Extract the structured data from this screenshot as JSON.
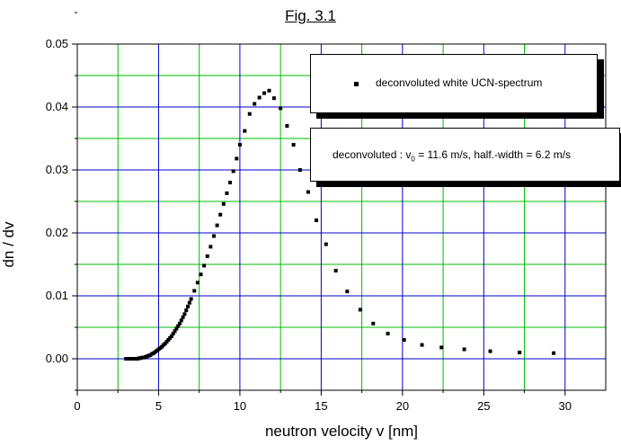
{
  "figure_title": "Fig. 3.1",
  "legend": {
    "series_label": "deconvoluted white UCN-spectrum"
  },
  "annotation": {
    "prefix": "deconvoluted : v",
    "subscript": "0",
    "suffix": " = 11.6 m/s, half.-width = 6.2 m/s"
  },
  "chart_data": {
    "type": "scatter",
    "xlabel": "neutron velocity v [nm]",
    "ylabel": "dn / dv",
    "xlim": [
      0,
      32.5
    ],
    "ylim": [
      -0.005,
      0.05
    ],
    "xticks": [
      "0",
      "5",
      "10",
      "15",
      "20",
      "25",
      "30"
    ],
    "yticks": [
      "0.00",
      "0.01",
      "0.02",
      "0.03",
      "0.04",
      "0.05"
    ],
    "grid": true,
    "grid_major_color": "#0000cc",
    "grid_minor_color": "#00bb00",
    "marker_color": "#000000",
    "series": [
      {
        "name": "deconvoluted white UCN-spectrum",
        "x": [
          3.0,
          3.1,
          3.2,
          3.3,
          3.4,
          3.5,
          3.6,
          3.7,
          3.8,
          3.9,
          4.0,
          4.1,
          4.2,
          4.3,
          4.4,
          4.5,
          4.6,
          4.7,
          4.8,
          4.9,
          5.0,
          5.1,
          5.2,
          5.3,
          5.4,
          5.5,
          5.6,
          5.7,
          5.8,
          5.9,
          6.0,
          6.1,
          6.2,
          6.3,
          6.4,
          6.5,
          6.6,
          6.7,
          6.8,
          6.9,
          7.0,
          7.2,
          7.4,
          7.6,
          7.8,
          8.0,
          8.2,
          8.4,
          8.6,
          8.8,
          9.0,
          9.2,
          9.4,
          9.6,
          9.8,
          10.0,
          10.3,
          10.6,
          10.9,
          11.2,
          11.5,
          11.8,
          12.1,
          12.5,
          12.9,
          13.3,
          13.7,
          14.2,
          14.7,
          15.3,
          15.9,
          16.6,
          17.4,
          18.2,
          19.1,
          20.1,
          21.2,
          22.4,
          23.8,
          25.4,
          27.2,
          29.3
        ],
        "y": [
          0.0,
          0.0,
          0.0,
          0.0,
          0.0,
          0.0,
          0.0,
          0.0,
          0.0001,
          0.0001,
          0.0002,
          0.0002,
          0.0003,
          0.0004,
          0.0005,
          0.0006,
          0.0008,
          0.0009,
          0.0011,
          0.0013,
          0.0015,
          0.0017,
          0.0019,
          0.0022,
          0.0024,
          0.0027,
          0.003,
          0.0033,
          0.0036,
          0.004,
          0.0044,
          0.0048,
          0.0052,
          0.0056,
          0.0061,
          0.0066,
          0.0071,
          0.0077,
          0.0083,
          0.0089,
          0.0095,
          0.0108,
          0.0121,
          0.0134,
          0.0148,
          0.0163,
          0.0178,
          0.0195,
          0.0212,
          0.0229,
          0.0246,
          0.0263,
          0.028,
          0.0298,
          0.0318,
          0.034,
          0.0362,
          0.0389,
          0.0405,
          0.0415,
          0.0422,
          0.0426,
          0.0414,
          0.0398,
          0.037,
          0.034,
          0.03,
          0.0265,
          0.022,
          0.0182,
          0.014,
          0.0107,
          0.0078,
          0.0056,
          0.004,
          0.003,
          0.0022,
          0.0018,
          0.0015,
          0.0012,
          0.001,
          0.0009
        ]
      }
    ]
  }
}
